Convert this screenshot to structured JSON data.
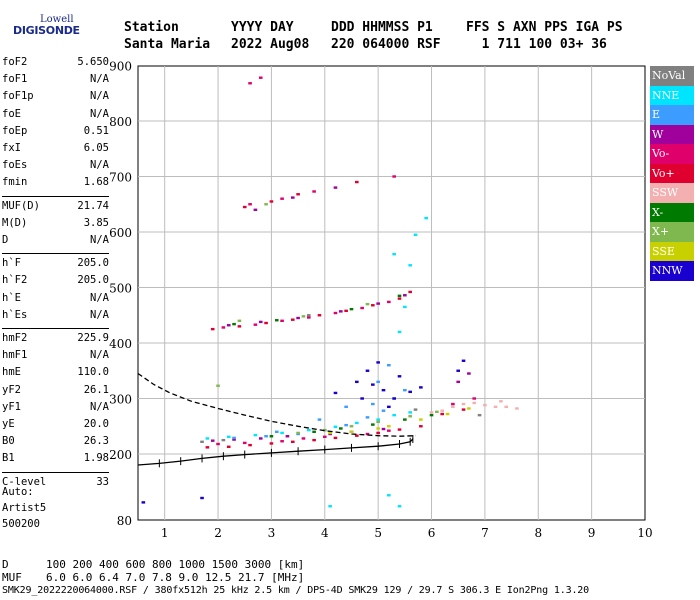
{
  "logo": {
    "line1": "Lowell",
    "line2": "DIGISONDE"
  },
  "header": {
    "labels": [
      "Station",
      "YYYY DAY",
      "DDD HHMMSS P1",
      "FFS S AXN PPS IGA PS"
    ],
    "values": [
      "Santa Maria",
      "2022 Aug08",
      "220 064000 RSF",
      "  1 711 100 03+ 36"
    ]
  },
  "parameters": [
    {
      "name": "foF2",
      "value": "5.650"
    },
    {
      "name": "foF1",
      "value": "N/A"
    },
    {
      "name": "foF1p",
      "value": "N/A"
    },
    {
      "name": "foE",
      "value": "N/A"
    },
    {
      "name": "foEp",
      "value": "0.51"
    },
    {
      "name": "fxI",
      "value": "6.05"
    },
    {
      "name": "foEs",
      "value": "N/A"
    },
    {
      "name": "fmin",
      "value": "1.68"
    },
    {
      "name": "MUF(D)",
      "value": "21.74"
    },
    {
      "name": "M(D)",
      "value": "3.85"
    },
    {
      "name": "D",
      "value": "N/A"
    },
    {
      "name": "h`F",
      "value": "205.0"
    },
    {
      "name": "h`F2",
      "value": "205.0"
    },
    {
      "name": "h`E",
      "value": "N/A"
    },
    {
      "name": "h`Es",
      "value": "N/A"
    },
    {
      "name": "hmF2",
      "value": "225.9"
    },
    {
      "name": "hmF1",
      "value": "N/A"
    },
    {
      "name": "hmE",
      "value": "110.0"
    },
    {
      "name": "yF2",
      "value": "26.1"
    },
    {
      "name": "yF1",
      "value": "N/A"
    },
    {
      "name": "yE",
      "value": "20.0"
    },
    {
      "name": "B0",
      "value": "26.3"
    },
    {
      "name": "B1",
      "value": "1.98"
    },
    {
      "name": "C-level",
      "value": "33"
    }
  ],
  "auto": {
    "line1": "Auto:",
    "line2": "Artist5",
    "line3": "500200"
  },
  "legend": [
    {
      "label": "NoVal",
      "color": "#808080"
    },
    {
      "label": "NNE",
      "color": "#00e5ff"
    },
    {
      "label": "E",
      "color": "#3c9cff"
    },
    {
      "label": "W",
      "color": "#a0009c"
    },
    {
      "label": "Vo-",
      "color": "#e0006c"
    },
    {
      "label": "Vo+",
      "color": "#e00030"
    },
    {
      "label": "SSW",
      "color": "#f4b0b0"
    },
    {
      "label": "X-",
      "color": "#007a00"
    },
    {
      "label": "X+",
      "color": "#80b850"
    },
    {
      "label": "SSE",
      "color": "#c8d000"
    },
    {
      "label": "NNW",
      "color": "#1a00d0"
    }
  ],
  "footer": {
    "d_label": "D",
    "muf_label": "MUF",
    "d_values": "100  200  400  600  800 1000 1500 3000 [km]",
    "muf_values": "6.0  6.0  6.4  7.0  7.8  9.0 12.5 21.7 [MHz]",
    "bottom": "SMK29_2022220064000.RSF / 380fx512h 25 kHz 2.5 km / DPS-4D SMK29 129 / 29.7 S 306.3 E Ion2Png 1.3.20"
  },
  "chart_data": {
    "type": "scatter",
    "xlim": [
      0.5,
      10
    ],
    "ylim": [
      80,
      900
    ],
    "x_ticks": [
      1,
      2,
      3,
      4,
      5,
      6,
      7,
      8,
      9,
      10
    ],
    "y_ticks": [
      80,
      200,
      300,
      400,
      500,
      600,
      700,
      800,
      900
    ],
    "grid": true,
    "legend_position": "right",
    "series": [
      {
        "name": "Vo+",
        "color": "#e00030",
        "points": [
          [
            1.8,
            212
          ],
          [
            2.2,
            213
          ],
          [
            2.6,
            216
          ],
          [
            3.0,
            219
          ],
          [
            3.4,
            222
          ],
          [
            3.8,
            225
          ],
          [
            4.2,
            229
          ],
          [
            4.6,
            233
          ],
          [
            5.0,
            238
          ],
          [
            5.4,
            244
          ],
          [
            5.8,
            250
          ],
          [
            1.9,
            425
          ],
          [
            2.4,
            430
          ],
          [
            2.9,
            436
          ],
          [
            3.4,
            442
          ],
          [
            3.9,
            450
          ],
          [
            4.4,
            458
          ],
          [
            4.9,
            468
          ],
          [
            5.4,
            480
          ],
          [
            5.6,
            492
          ],
          [
            2.5,
            645
          ],
          [
            3.0,
            655
          ],
          [
            3.5,
            668
          ],
          [
            4.6,
            690
          ],
          [
            6.2,
            272
          ],
          [
            6.6,
            280
          ]
        ]
      },
      {
        "name": "Vo-",
        "color": "#e0006c",
        "points": [
          [
            2.0,
            218
          ],
          [
            2.5,
            220
          ],
          [
            3.2,
            223
          ],
          [
            3.6,
            228
          ],
          [
            4.0,
            231
          ],
          [
            4.8,
            236
          ],
          [
            5.2,
            242
          ],
          [
            2.1,
            428
          ],
          [
            2.7,
            433
          ],
          [
            3.2,
            440
          ],
          [
            3.7,
            446
          ],
          [
            4.2,
            454
          ],
          [
            4.7,
            463
          ],
          [
            5.2,
            474
          ],
          [
            2.6,
            650
          ],
          [
            3.2,
            660
          ],
          [
            3.8,
            673
          ],
          [
            5.3,
            700
          ],
          [
            2.6,
            868
          ],
          [
            2.8,
            878
          ],
          [
            6.4,
            290
          ],
          [
            6.8,
            300
          ]
        ]
      },
      {
        "name": "W",
        "color": "#a0009c",
        "points": [
          [
            1.9,
            224
          ],
          [
            2.3,
            226
          ],
          [
            2.8,
            228
          ],
          [
            3.3,
            232
          ],
          [
            4.1,
            236
          ],
          [
            4.5,
            240
          ],
          [
            5.1,
            245
          ],
          [
            2.2,
            432
          ],
          [
            2.8,
            438
          ],
          [
            3.5,
            445
          ],
          [
            4.3,
            457
          ],
          [
            5.0,
            471
          ],
          [
            5.5,
            486
          ],
          [
            2.7,
            640
          ],
          [
            3.4,
            662
          ],
          [
            4.2,
            680
          ],
          [
            6.5,
            330
          ],
          [
            6.7,
            345
          ]
        ]
      },
      {
        "name": "E",
        "color": "#3c9cff",
        "points": [
          [
            2.3,
            229
          ],
          [
            2.9,
            232
          ],
          [
            3.5,
            236
          ],
          [
            4.0,
            243
          ],
          [
            4.4,
            252
          ],
          [
            4.8,
            266
          ],
          [
            5.1,
            278
          ],
          [
            5.3,
            300
          ],
          [
            5.5,
            315
          ],
          [
            5.0,
            330
          ],
          [
            4.4,
            285
          ],
          [
            4.9,
            290
          ],
          [
            3.9,
            262
          ],
          [
            3.1,
            240
          ],
          [
            5.2,
            360
          ]
        ]
      },
      {
        "name": "NNE",
        "color": "#00e5ff",
        "points": [
          [
            1.8,
            228
          ],
          [
            2.2,
            231
          ],
          [
            2.7,
            234
          ],
          [
            3.2,
            238
          ],
          [
            3.7,
            243
          ],
          [
            4.2,
            249
          ],
          [
            4.6,
            256
          ],
          [
            5.0,
            262
          ],
          [
            5.3,
            270
          ],
          [
            5.6,
            275
          ],
          [
            5.4,
            420
          ],
          [
            5.5,
            465
          ],
          [
            5.6,
            540
          ],
          [
            5.7,
            595
          ],
          [
            5.9,
            625
          ],
          [
            5.3,
            560
          ],
          [
            5.2,
            125
          ],
          [
            5.4,
            105
          ],
          [
            4.1,
            105
          ]
        ]
      },
      {
        "name": "NNW",
        "color": "#1a00d0",
        "points": [
          [
            4.6,
            330
          ],
          [
            4.9,
            325
          ],
          [
            5.1,
            315
          ],
          [
            5.3,
            300
          ],
          [
            4.8,
            350
          ],
          [
            5.0,
            365
          ],
          [
            5.4,
            340
          ],
          [
            5.6,
            312
          ],
          [
            4.7,
            300
          ],
          [
            5.2,
            285
          ],
          [
            4.2,
            310
          ],
          [
            5.8,
            320
          ],
          [
            6.5,
            350
          ],
          [
            6.6,
            368
          ],
          [
            1.7,
            120
          ],
          [
            0.6,
            112
          ]
        ]
      },
      {
        "name": "SSW",
        "color": "#f4b0b0",
        "points": [
          [
            6.4,
            285
          ],
          [
            6.6,
            290
          ],
          [
            6.8,
            292
          ],
          [
            7.0,
            288
          ],
          [
            7.2,
            285
          ],
          [
            7.4,
            285
          ],
          [
            7.6,
            282
          ],
          [
            6.0,
            275
          ],
          [
            6.2,
            278
          ],
          [
            7.3,
            295
          ]
        ]
      },
      {
        "name": "X+",
        "color": "#80b850",
        "points": [
          [
            3.5,
            238
          ],
          [
            4.0,
            243
          ],
          [
            4.5,
            250
          ],
          [
            5.0,
            258
          ],
          [
            5.6,
            268
          ],
          [
            6.1,
            276
          ],
          [
            2.4,
            440
          ],
          [
            3.6,
            448
          ],
          [
            4.8,
            470
          ],
          [
            2.0,
            323
          ],
          [
            2.9,
            650
          ]
        ]
      },
      {
        "name": "X-",
        "color": "#007a00",
        "points": [
          [
            3.0,
            232
          ],
          [
            3.8,
            240
          ],
          [
            4.3,
            246
          ],
          [
            4.9,
            253
          ],
          [
            5.5,
            262
          ],
          [
            6.0,
            270
          ],
          [
            2.3,
            434
          ],
          [
            3.1,
            441
          ],
          [
            4.5,
            461
          ],
          [
            5.4,
            485
          ]
        ]
      },
      {
        "name": "SSE",
        "color": "#c8d000",
        "points": [
          [
            4.5,
            240
          ],
          [
            5.2,
            250
          ],
          [
            5.8,
            262
          ],
          [
            6.3,
            272
          ],
          [
            6.7,
            282
          ],
          [
            5.0,
            246
          ],
          [
            4.1,
            238
          ]
        ]
      },
      {
        "name": "NoVal",
        "color": "#808080",
        "points": [
          [
            1.7,
            222
          ],
          [
            2.1,
            225
          ],
          [
            5.7,
            280
          ],
          [
            6.9,
            270
          ],
          [
            3.7,
            450
          ]
        ]
      }
    ],
    "profile_curve": {
      "style": "dashed",
      "points": [
        [
          0.5,
          345
        ],
        [
          0.8,
          325
        ],
        [
          1.1,
          310
        ],
        [
          1.5,
          295
        ],
        [
          2.0,
          282
        ],
        [
          2.5,
          270
        ],
        [
          3.0,
          259
        ],
        [
          3.5,
          250
        ],
        [
          4.0,
          242
        ],
        [
          4.5,
          236
        ],
        [
          5.0,
          233
        ],
        [
          5.4,
          232
        ],
        [
          5.7,
          233
        ]
      ]
    },
    "trace_curve": {
      "style": "solid",
      "ticks": true,
      "points": [
        [
          0.5,
          180
        ],
        [
          0.9,
          183
        ],
        [
          1.3,
          187
        ],
        [
          1.7,
          192
        ],
        [
          2.1,
          196
        ],
        [
          2.5,
          199
        ],
        [
          3.0,
          202
        ],
        [
          3.5,
          205
        ],
        [
          4.0,
          208
        ],
        [
          4.5,
          211
        ],
        [
          5.0,
          214
        ],
        [
          5.4,
          218
        ],
        [
          5.6,
          222
        ],
        [
          5.65,
          227
        ]
      ]
    }
  }
}
